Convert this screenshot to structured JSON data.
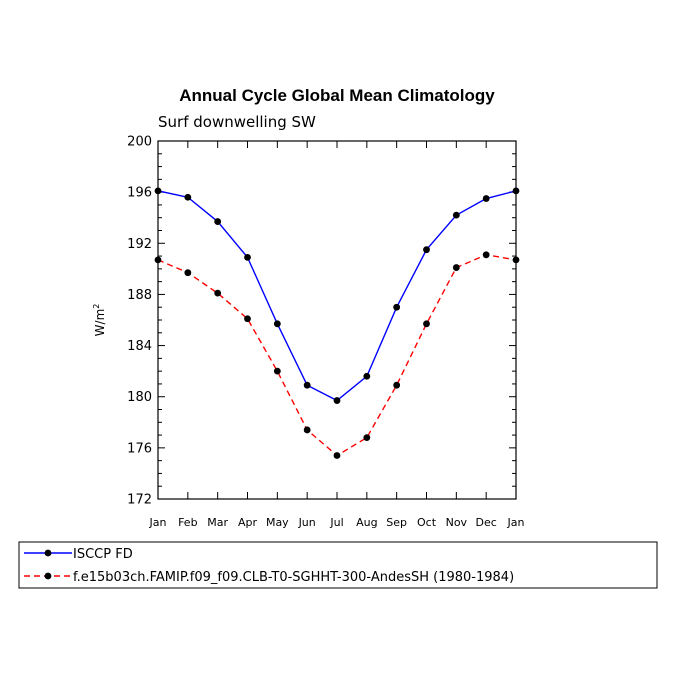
{
  "chart_data": {
    "type": "line",
    "title": "Annual Cycle Global Mean Climatology",
    "subtitle": "Surf downwelling SW",
    "ylabel_main": "W/m",
    "ylabel_sup": "2",
    "xlabel": "",
    "categories": [
      "Jan",
      "Feb",
      "Mar",
      "Apr",
      "May",
      "Jun",
      "Jul",
      "Aug",
      "Sep",
      "Oct",
      "Nov",
      "Dec",
      "Jan"
    ],
    "ylim": [
      172,
      200
    ],
    "yticks": [
      172,
      176,
      180,
      184,
      188,
      192,
      196,
      200
    ],
    "grid": false,
    "legend_position": "bottom",
    "series": [
      {
        "name": "ISCCP FD",
        "color": "#0000ff",
        "dash": "solid",
        "values": [
          196.1,
          195.6,
          193.7,
          190.9,
          185.7,
          180.9,
          179.7,
          181.6,
          187.0,
          191.5,
          194.2,
          195.5,
          196.1
        ]
      },
      {
        "name": "f.e15b03ch.FAMIP.f09_f09.CLB-T0-SGHHT-300-AndesSH (1980-1984)",
        "color": "#ff0000",
        "dash": "dashed",
        "values": [
          190.7,
          189.7,
          188.1,
          186.1,
          182.0,
          177.4,
          175.4,
          176.8,
          180.9,
          185.7,
          190.1,
          191.1,
          190.7
        ]
      }
    ]
  }
}
